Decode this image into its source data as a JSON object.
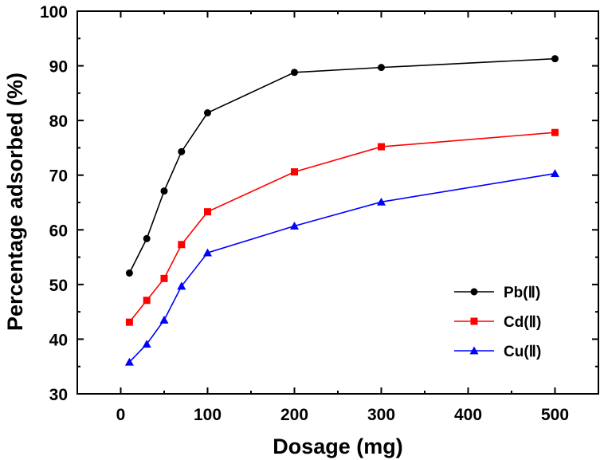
{
  "chart_data": {
    "type": "line",
    "xlabel": "Dosage (mg)",
    "ylabel": "Percentage adsorbed (%)",
    "xlim": [
      -50,
      550
    ],
    "ylim": [
      30,
      100
    ],
    "xticks": [
      0,
      100,
      200,
      300,
      400,
      500
    ],
    "yticks": [
      30,
      40,
      50,
      60,
      70,
      80,
      90,
      100
    ],
    "legend_position": "bottom-right",
    "grid": false,
    "series": [
      {
        "name": "Pb(Ⅱ)",
        "color": "#000000",
        "marker": "circle",
        "x": [
          10,
          30,
          50,
          70,
          100,
          200,
          300,
          500
        ],
        "y": [
          52.1,
          58.4,
          67.1,
          74.3,
          81.4,
          88.8,
          89.7,
          91.3
        ]
      },
      {
        "name": "Cd(Ⅱ)",
        "color": "#ff0000",
        "marker": "square",
        "x": [
          10,
          30,
          50,
          70,
          100,
          200,
          300,
          500
        ],
        "y": [
          43.1,
          47.1,
          51.1,
          57.3,
          63.3,
          70.6,
          75.2,
          77.8
        ]
      },
      {
        "name": "Cu(Ⅱ)",
        "color": "#0000ff",
        "marker": "triangle",
        "x": [
          10,
          30,
          50,
          70,
          100,
          200,
          300,
          500
        ],
        "y": [
          35.8,
          39.1,
          43.5,
          49.7,
          55.8,
          60.7,
          65.1,
          70.3
        ]
      }
    ]
  }
}
